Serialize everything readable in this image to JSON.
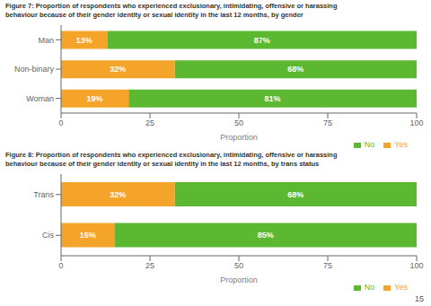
{
  "chart_data": [
    {
      "type": "bar",
      "orientation": "horizontal",
      "stacked": true,
      "data_labels": true,
      "grid": false,
      "legend": "lower right",
      "title": "Figure 7: Proportion of respondents who experienced exclusionary, intimidating, offensive or harassing\nbehaviour because of their gender identity or sexual identity in the last 12 months, by gender",
      "xlabel": "Proportion",
      "categories": [
        "Man",
        "Non-binary",
        "Woman"
      ],
      "series": [
        {
          "name": "Yes",
          "color": "#F5A42A",
          "values": [
            13,
            32,
            19
          ],
          "value_labels": [
            "13%",
            "32%",
            "19%"
          ]
        },
        {
          "name": "No",
          "color": "#5BB830",
          "values": [
            87,
            68,
            81
          ],
          "value_labels": [
            "87%",
            "68%",
            "81%"
          ]
        }
      ],
      "xlim": [
        0,
        100
      ],
      "xticks": [
        0,
        25,
        50,
        75,
        100
      ]
    },
    {
      "type": "bar",
      "orientation": "horizontal",
      "stacked": true,
      "data_labels": true,
      "grid": false,
      "legend": "lower right",
      "title": "Figure 8: Proportion of respondents who experienced exclusionary, intimidating, offensive or harassing\nbehaviour because of their gender identity or sexual identity in the last 12 months, by trans status",
      "xlabel": "Proportion",
      "categories": [
        "Trans",
        "Cis"
      ],
      "series": [
        {
          "name": "Yes",
          "color": "#F5A42A",
          "values": [
            32,
            15
          ],
          "value_labels": [
            "32%",
            "15%"
          ]
        },
        {
          "name": "No",
          "color": "#5BB830",
          "values": [
            68,
            85
          ],
          "value_labels": [
            "68%",
            "85%"
          ]
        }
      ],
      "xlim": [
        0,
        100
      ],
      "xticks": [
        0,
        25,
        50,
        75,
        100
      ],
      "annotations": [
        "15"
      ]
    }
  ]
}
